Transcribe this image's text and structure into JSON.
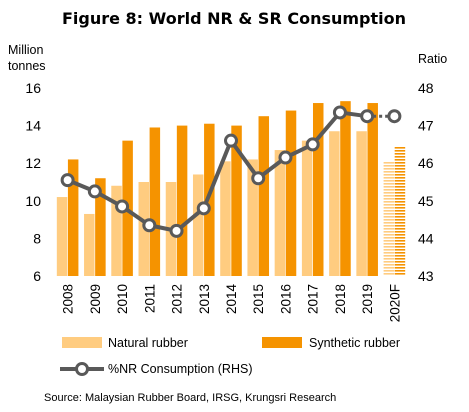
{
  "chart_data": {
    "type": "bar",
    "title": "Figure 8: World NR & SR Consumption",
    "ylabel_left": "Million tonnes",
    "ylabel_right": "Ratio",
    "categories": [
      "2008",
      "2009",
      "2010",
      "2011",
      "2012",
      "2013",
      "2014",
      "2015",
      "2016",
      "2017",
      "2018",
      "2019",
      "2020F"
    ],
    "ylim_left": [
      6,
      16
    ],
    "yticks_left": [
      6,
      8,
      10,
      12,
      14,
      16
    ],
    "ylim_right": [
      43,
      48
    ],
    "yticks_right": [
      43,
      44,
      45,
      46,
      47,
      48
    ],
    "grid": false,
    "legend_position": "bottom",
    "forecast_category": "2020F",
    "series": [
      {
        "name": "Natural rubber",
        "kind": "bar",
        "axis": "left",
        "color": "#FFCC80",
        "values": [
          10.2,
          9.3,
          10.8,
          11.0,
          11.0,
          11.4,
          12.1,
          12.2,
          12.7,
          13.2,
          13.7,
          13.7,
          12.1
        ]
      },
      {
        "name": "Synthetic rubber",
        "kind": "bar",
        "axis": "left",
        "color": "#F59300",
        "values": [
          12.2,
          11.2,
          13.2,
          13.9,
          14.0,
          14.1,
          14.0,
          14.5,
          14.8,
          15.2,
          15.3,
          15.2,
          12.9
        ]
      },
      {
        "name": "%NR Consumption (RHS)",
        "kind": "line",
        "axis": "right",
        "color": "#595959",
        "values": [
          45.55,
          45.25,
          44.85,
          44.35,
          44.2,
          44.8,
          46.6,
          45.6,
          46.15,
          46.5,
          47.35,
          47.25,
          47.25
        ]
      }
    ],
    "source": "Source: Malaysian Rubber Board, IRSG, Krungsri Research"
  }
}
